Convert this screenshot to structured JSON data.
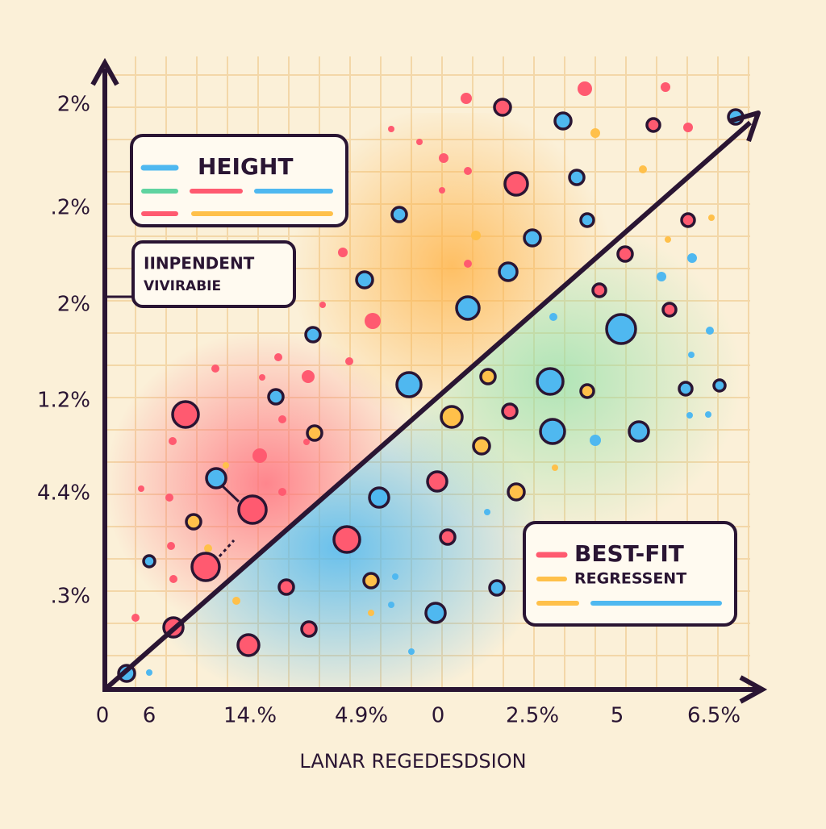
{
  "y_axis_labels": [
    "2%",
    ".2%",
    "2%",
    "1.2%",
    "4.4%",
    ".3%"
  ],
  "x_axis_labels": [
    "0",
    "6",
    "14.%",
    "4.9%",
    "0",
    "2.5%",
    "5",
    "6.5%"
  ],
  "x_axis_title": "LANAR REGEDESDSION",
  "legend_top": {
    "title": "HEIGHT"
  },
  "callout": {
    "lines": [
      "IINPENDENT",
      "VIVIRABIE"
    ]
  },
  "legend_bottom": {
    "lines": [
      "BEST-FIT",
      "REGRESSENT"
    ]
  }
}
